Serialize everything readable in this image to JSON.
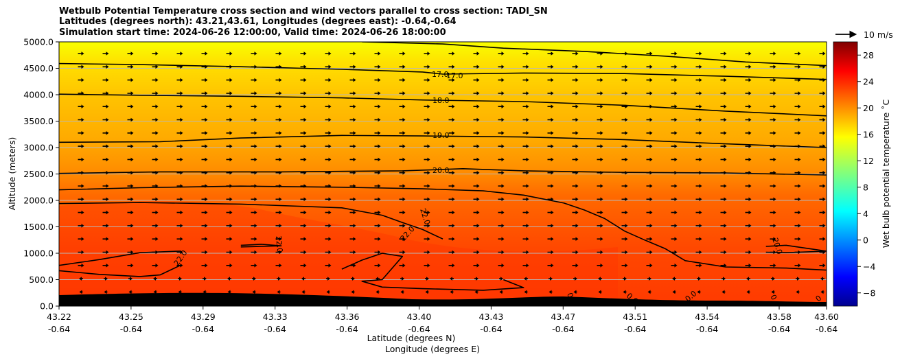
{
  "chart_data": {
    "type": "heatmap",
    "title_lines": [
      "Wetbulb Potential Temperature cross section and wind vectors parallel to cross section: TADI_SN",
      "Latitudes (degrees north): 43.21,43.61, Longitudes (degrees east): -0.64,-0.64",
      "Simulation start time: 2024-06-26 12:00:00, Valid time: 2024-06-26 18:00:00"
    ],
    "xlabel_lines": [
      "Latitude (degrees N)",
      "Longitude (degrees E)"
    ],
    "ylabel": "Altitude (meters)",
    "x_ticks": [
      {
        "lat": "43.22",
        "lon": "-0.64"
      },
      {
        "lat": "43.25",
        "lon": "-0.64"
      },
      {
        "lat": "43.29",
        "lon": "-0.64"
      },
      {
        "lat": "43.33",
        "lon": "-0.64"
      },
      {
        "lat": "43.36",
        "lon": "-0.64"
      },
      {
        "lat": "43.40",
        "lon": "-0.64"
      },
      {
        "lat": "43.43",
        "lon": "-0.64"
      },
      {
        "lat": "43.47",
        "lon": "-0.64"
      },
      {
        "lat": "43.51",
        "lon": "-0.64"
      },
      {
        "lat": "43.54",
        "lon": "-0.64"
      },
      {
        "lat": "43.58",
        "lon": "-0.64"
      },
      {
        "lat": "43.60",
        "lon": "-0.64"
      }
    ],
    "x_range": [
      43.22,
      43.6
    ],
    "y_ticks": [
      "0.0",
      "500.0",
      "1000.0",
      "1500.0",
      "2000.0",
      "2500.0",
      "3000.0",
      "3500.0",
      "4000.0",
      "4500.0",
      "5000.0"
    ],
    "y_range": [
      0,
      5000
    ],
    "grid": "horizontal",
    "colorbar": {
      "label": "Wet bulb potential temperature ˚C",
      "ticks": [
        "−8",
        "−4",
        "0",
        "4",
        "8",
        "12",
        "16",
        "20",
        "24",
        "28"
      ],
      "range": [
        -10,
        30
      ],
      "colormap": "jet"
    },
    "wind_key": {
      "label": "10 m/s"
    },
    "contour_labels": [
      "17.0",
      "17.0",
      "18.0",
      "19.0",
      "20.0",
      "22.0",
      "22.0",
      "22.0",
      "22.0",
      "20.0",
      "0",
      "0.0",
      "0.0",
      "0",
      "0"
    ],
    "contours": [
      {
        "level": 17,
        "points": [
          [
            43.22,
            4590
          ],
          [
            43.26,
            4570
          ],
          [
            43.31,
            4530
          ],
          [
            43.36,
            4480
          ],
          [
            43.4,
            4430
          ],
          [
            43.41,
            4390
          ],
          [
            43.45,
            4410
          ],
          [
            43.5,
            4400
          ],
          [
            43.55,
            4350
          ],
          [
            43.6,
            4290
          ]
        ]
      },
      {
        "level": 17,
        "points": [
          [
            43.37,
            5000
          ],
          [
            43.41,
            4960
          ],
          [
            43.44,
            4880
          ],
          [
            43.48,
            4820
          ],
          [
            43.52,
            4730
          ],
          [
            43.56,
            4620
          ],
          [
            43.6,
            4550
          ]
        ]
      },
      {
        "level": 18,
        "points": [
          [
            43.22,
            4010
          ],
          [
            43.26,
            3990
          ],
          [
            43.31,
            3970
          ],
          [
            43.36,
            3940
          ],
          [
            43.4,
            3900
          ],
          [
            43.45,
            3870
          ],
          [
            43.5,
            3800
          ],
          [
            43.55,
            3690
          ],
          [
            43.6,
            3600
          ]
        ]
      },
      {
        "level": 19,
        "points": [
          [
            43.22,
            3100
          ],
          [
            43.27,
            3110
          ],
          [
            43.31,
            3180
          ],
          [
            43.36,
            3230
          ],
          [
            43.4,
            3220
          ],
          [
            43.45,
            3200
          ],
          [
            43.5,
            3150
          ],
          [
            43.55,
            3070
          ],
          [
            43.6,
            3000
          ]
        ]
      },
      {
        "level": 20,
        "points": [
          [
            43.22,
            2510
          ],
          [
            43.27,
            2540
          ],
          [
            43.33,
            2540
          ],
          [
            43.39,
            2560
          ],
          [
            43.42,
            2600
          ],
          [
            43.45,
            2560
          ],
          [
            43.5,
            2530
          ],
          [
            43.55,
            2520
          ],
          [
            43.6,
            2480
          ]
        ]
      },
      {
        "level": 21,
        "points": [
          [
            43.22,
            2200
          ],
          [
            43.26,
            2240
          ],
          [
            43.31,
            2270
          ],
          [
            43.36,
            2250
          ],
          [
            43.4,
            2220
          ],
          [
            43.43,
            2180
          ],
          [
            43.45,
            2100
          ],
          [
            43.47,
            1950
          ],
          [
            43.48,
            1820
          ],
          [
            43.49,
            1660
          ],
          [
            43.5,
            1420
          ],
          [
            43.51,
            1250
          ],
          [
            43.52,
            1090
          ],
          [
            43.53,
            860
          ],
          [
            43.55,
            740
          ],
          [
            43.58,
            720
          ],
          [
            43.6,
            680
          ]
        ]
      },
      {
        "level": 22,
        "points": [
          [
            43.22,
            1940
          ],
          [
            43.26,
            1960
          ],
          [
            43.31,
            1930
          ],
          [
            43.36,
            1860
          ],
          [
            43.38,
            1720
          ],
          [
            43.39,
            1580
          ],
          [
            43.4,
            1450
          ],
          [
            43.41,
            1270
          ]
        ]
      },
      {
        "level": 22,
        "points": [
          [
            43.22,
            770
          ],
          [
            43.24,
            880
          ],
          [
            43.26,
            1010
          ],
          [
            43.28,
            1040
          ]
        ]
      },
      {
        "level": 22,
        "points": [
          [
            43.22,
            670
          ],
          [
            43.24,
            600
          ],
          [
            43.26,
            560
          ],
          [
            43.27,
            590
          ],
          [
            43.28,
            770
          ]
        ]
      },
      {
        "level": 22,
        "points": [
          [
            43.31,
            1150
          ],
          [
            43.32,
            1170
          ],
          [
            43.33,
            1140
          ],
          [
            43.31,
            1120
          ]
        ]
      },
      {
        "level": 20,
        "points": [
          [
            43.57,
            1130
          ],
          [
            43.58,
            1150
          ],
          [
            43.6,
            1040
          ],
          [
            43.58,
            1010
          ],
          [
            43.57,
            1020
          ]
        ]
      },
      {
        "level": 23,
        "points": [
          [
            43.36,
            700
          ],
          [
            43.37,
            870
          ],
          [
            43.38,
            1000
          ],
          [
            43.39,
            940
          ],
          [
            43.38,
            500
          ],
          [
            43.37,
            470
          ],
          [
            43.38,
            360
          ],
          [
            43.4,
            330
          ],
          [
            43.43,
            300
          ],
          [
            43.45,
            350
          ],
          [
            43.44,
            500
          ]
        ]
      }
    ]
  }
}
